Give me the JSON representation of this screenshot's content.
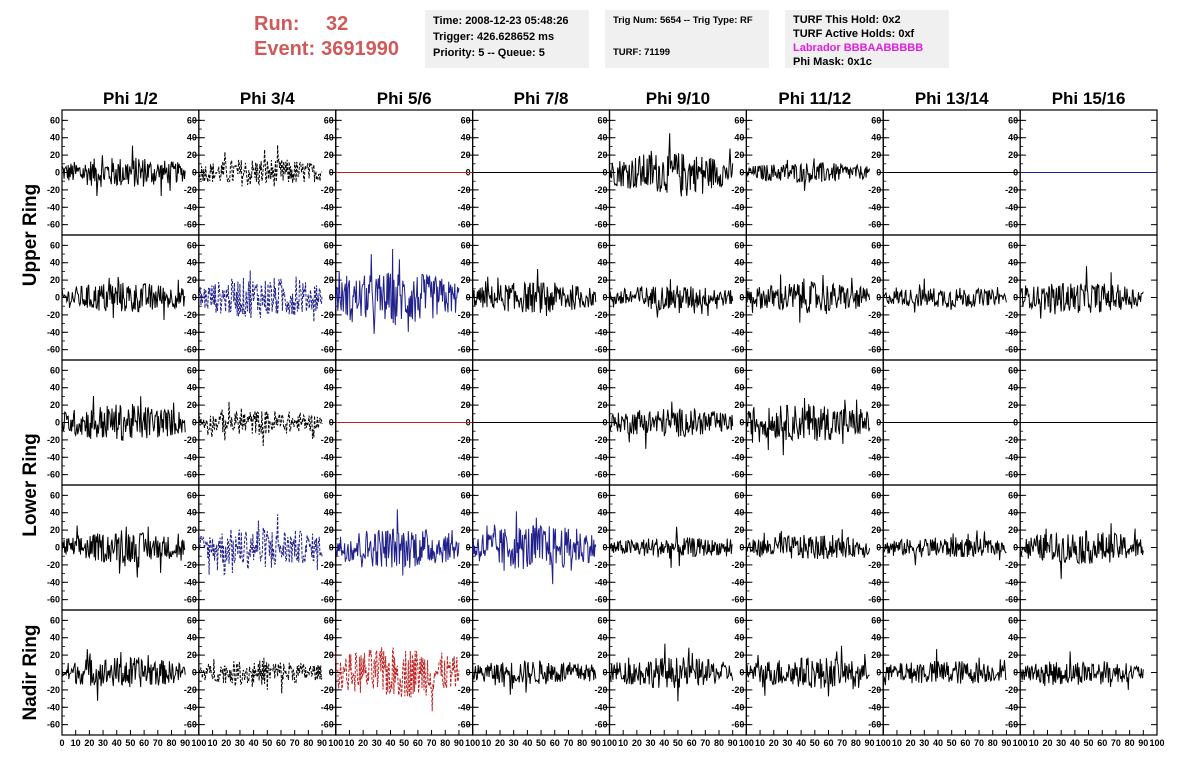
{
  "header": {
    "run_label": "Run:",
    "run_value": "32",
    "event_label": "Event:",
    "event_value": "3691990"
  },
  "info_time": {
    "time": "Time: 2008-12-23 05:48:26",
    "trigger": "Trigger: 426.628652 ms",
    "priority": "Priority: 5 -- Queue: 5"
  },
  "info_trig": {
    "trig": "Trig Num: 5654 -- Trig Type: RF",
    "turf": "TURF: 71199"
  },
  "info_turf": {
    "hold": "TURF This Hold: 0x2",
    "active": "TURF Active Holds: 0xf",
    "labrador": "Labrador BBBAABBBBB",
    "phimask": "Phi Mask: 0x1c"
  },
  "colors": {
    "black": "#000000",
    "blue": "#20208c",
    "red": "#c02020",
    "magenta": "#e020e0",
    "header_red": "#d05a5a"
  },
  "chart_data": {
    "type": "line",
    "columns": [
      "Phi 1/2",
      "Phi 3/4",
      "Phi 5/6",
      "Phi 7/8",
      "Phi 9/10",
      "Phi 11/12",
      "Phi 13/14",
      "Phi 15/16"
    ],
    "rows": [
      "Upper Ring",
      "Lower Ring",
      "Nadir Ring"
    ],
    "ylim": [
      -65,
      65
    ],
    "yticks": [
      -60,
      -40,
      -20,
      0,
      20,
      40,
      60
    ],
    "xlim": [
      0,
      100
    ],
    "xticks": [
      0,
      10,
      20,
      30,
      40,
      50,
      60,
      70,
      80,
      90,
      100
    ],
    "x_range_samples": [
      0,
      90
    ],
    "panels": [
      {
        "strip": 0,
        "col": 0,
        "shape": "noise",
        "amp": 15,
        "color": "black",
        "dash": false
      },
      {
        "strip": 0,
        "col": 1,
        "shape": "noise",
        "amp": 14,
        "color": "black",
        "dash": true
      },
      {
        "strip": 0,
        "col": 2,
        "shape": "flat",
        "amp": 0,
        "color": "red",
        "dash": false
      },
      {
        "strip": 0,
        "col": 3,
        "shape": "flat",
        "amp": 0,
        "color": "black",
        "dash": false
      },
      {
        "strip": 0,
        "col": 4,
        "shape": "noise",
        "amp": 20,
        "color": "black",
        "dash": false
      },
      {
        "strip": 0,
        "col": 5,
        "shape": "noise",
        "amp": 10,
        "color": "black",
        "dash": false
      },
      {
        "strip": 0,
        "col": 6,
        "shape": "flat",
        "amp": 0,
        "color": "black",
        "dash": false
      },
      {
        "strip": 0,
        "col": 7,
        "shape": "flat",
        "amp": 0,
        "color": "blue",
        "dash": false
      },
      {
        "strip": 1,
        "col": 0,
        "shape": "noise",
        "amp": 15,
        "color": "black",
        "dash": false
      },
      {
        "strip": 1,
        "col": 1,
        "shape": "noise",
        "amp": 20,
        "color": "blue",
        "dash": true
      },
      {
        "strip": 1,
        "col": 2,
        "shape": "noise",
        "amp": 25,
        "color": "blue",
        "dash": false
      },
      {
        "strip": 1,
        "col": 3,
        "shape": "noise",
        "amp": 15,
        "color": "black",
        "dash": false
      },
      {
        "strip": 1,
        "col": 4,
        "shape": "noise",
        "amp": 12,
        "color": "black",
        "dash": false
      },
      {
        "strip": 1,
        "col": 5,
        "shape": "noise",
        "amp": 15,
        "color": "black",
        "dash": false
      },
      {
        "strip": 1,
        "col": 6,
        "shape": "noise",
        "amp": 10,
        "color": "black",
        "dash": false
      },
      {
        "strip": 1,
        "col": 7,
        "shape": "noise",
        "amp": 15,
        "color": "black",
        "dash": false
      },
      {
        "strip": 2,
        "col": 0,
        "shape": "noise",
        "amp": 18,
        "color": "black",
        "dash": false
      },
      {
        "strip": 2,
        "col": 1,
        "shape": "noise",
        "amp": 12,
        "color": "black",
        "dash": true
      },
      {
        "strip": 2,
        "col": 2,
        "shape": "flat",
        "amp": 0,
        "color": "red",
        "dash": false
      },
      {
        "strip": 2,
        "col": 3,
        "shape": "flat",
        "amp": 0,
        "color": "black",
        "dash": false
      },
      {
        "strip": 2,
        "col": 4,
        "shape": "noise",
        "amp": 14,
        "color": "black",
        "dash": false
      },
      {
        "strip": 2,
        "col": 5,
        "shape": "noise",
        "amp": 18,
        "color": "black",
        "dash": false
      },
      {
        "strip": 2,
        "col": 6,
        "shape": "flat",
        "amp": 0,
        "color": "black",
        "dash": false
      },
      {
        "strip": 2,
        "col": 7,
        "shape": "flat",
        "amp": 0,
        "color": "black",
        "dash": false
      },
      {
        "strip": 3,
        "col": 0,
        "shape": "noise",
        "amp": 15,
        "color": "black",
        "dash": false
      },
      {
        "strip": 3,
        "col": 1,
        "shape": "noise",
        "amp": 20,
        "color": "blue",
        "dash": true
      },
      {
        "strip": 3,
        "col": 2,
        "shape": "noise",
        "amp": 20,
        "color": "blue",
        "dash": false
      },
      {
        "strip": 3,
        "col": 3,
        "shape": "noise",
        "amp": 22,
        "color": "blue",
        "dash": false
      },
      {
        "strip": 3,
        "col": 4,
        "shape": "noise",
        "amp": 10,
        "color": "black",
        "dash": false
      },
      {
        "strip": 3,
        "col": 5,
        "shape": "noise",
        "amp": 12,
        "color": "black",
        "dash": false
      },
      {
        "strip": 3,
        "col": 6,
        "shape": "noise",
        "amp": 10,
        "color": "black",
        "dash": false
      },
      {
        "strip": 3,
        "col": 7,
        "shape": "noise",
        "amp": 16,
        "color": "black",
        "dash": false
      },
      {
        "strip": 4,
        "col": 0,
        "shape": "noise",
        "amp": 15,
        "color": "black",
        "dash": false
      },
      {
        "strip": 4,
        "col": 1,
        "shape": "noise",
        "amp": 12,
        "color": "black",
        "dash": true
      },
      {
        "strip": 4,
        "col": 2,
        "shape": "noise",
        "amp": 25,
        "color": "red",
        "dash": true
      },
      {
        "strip": 4,
        "col": 3,
        "shape": "noise",
        "amp": 12,
        "color": "black",
        "dash": false
      },
      {
        "strip": 4,
        "col": 4,
        "shape": "noise",
        "amp": 15,
        "color": "black",
        "dash": false
      },
      {
        "strip": 4,
        "col": 5,
        "shape": "noise",
        "amp": 15,
        "color": "black",
        "dash": false
      },
      {
        "strip": 4,
        "col": 6,
        "shape": "noise",
        "amp": 12,
        "color": "black",
        "dash": false
      },
      {
        "strip": 4,
        "col": 7,
        "shape": "noise",
        "amp": 12,
        "color": "black",
        "dash": false
      }
    ]
  }
}
